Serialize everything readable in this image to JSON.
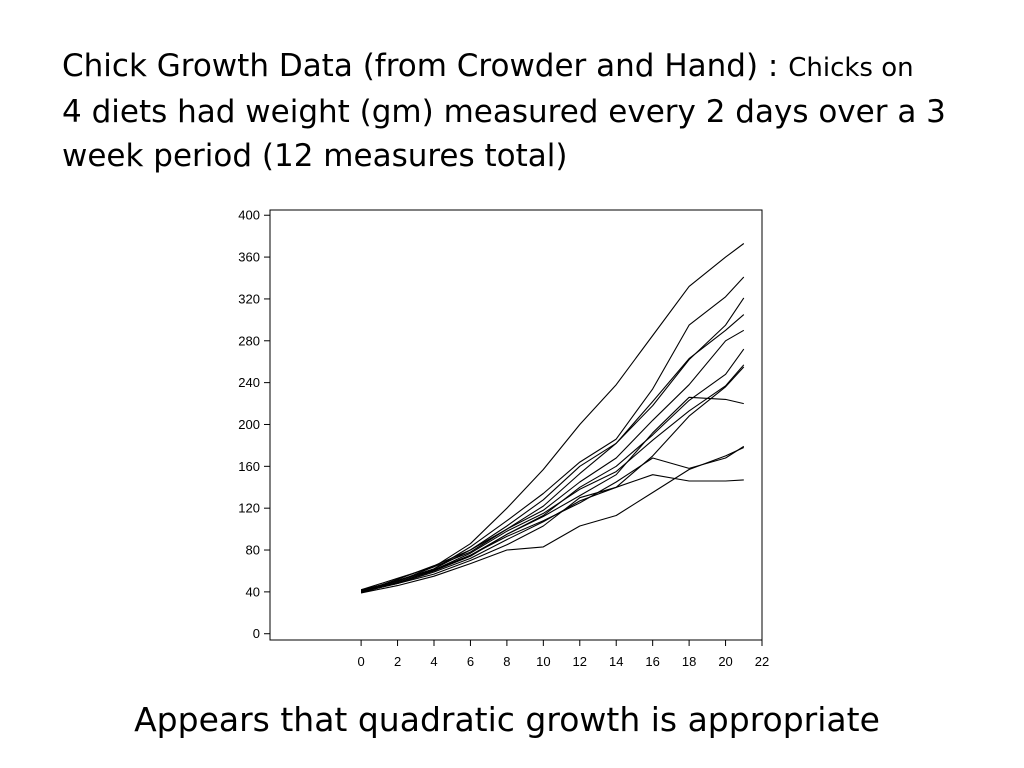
{
  "slide": {
    "title_main": "Chick Growth Data (from Crowder and Hand) : ",
    "title_small": "Chicks on",
    "title_rest": "4 diets had weight (gm) measured every 2 days over a 3 week period (12 measures total)",
    "caption": "Appears that quadratic growth is appropriate"
  },
  "chart_data": {
    "type": "line",
    "title": "",
    "xlabel": "",
    "ylabel": "",
    "xlim": [
      -5,
      22
    ],
    "ylim": [
      -6,
      405
    ],
    "xticks": [
      0,
      2,
      4,
      6,
      8,
      10,
      12,
      14,
      16,
      18,
      20,
      22
    ],
    "yticks": [
      0,
      40,
      80,
      120,
      160,
      200,
      240,
      280,
      320,
      360,
      400
    ],
    "grid": false,
    "line_color": "#000000",
    "x": [
      0,
      2,
      4,
      6,
      8,
      10,
      12,
      14,
      16,
      18,
      20,
      21
    ],
    "series": [
      {
        "values": [
          42,
          53,
          64,
          86,
          120,
          157,
          200,
          238,
          285,
          332,
          360,
          373
        ]
      },
      {
        "values": [
          41,
          51,
          62,
          83,
          108,
          134,
          164,
          186,
          234,
          295,
          322,
          341
        ]
      },
      {
        "values": [
          40,
          52,
          65,
          80,
          103,
          128,
          160,
          182,
          218,
          262,
          295,
          321
        ]
      },
      {
        "values": [
          41,
          50,
          64,
          78,
          100,
          122,
          153,
          182,
          222,
          263,
          290,
          305
        ]
      },
      {
        "values": [
          42,
          50,
          62,
          80,
          100,
          118,
          145,
          168,
          204,
          238,
          280,
          290
        ]
      },
      {
        "values": [
          40,
          49,
          60,
          75,
          95,
          113,
          140,
          160,
          190,
          223,
          248,
          272
        ]
      },
      {
        "values": [
          41,
          51,
          61,
          77,
          98,
          115,
          138,
          155,
          185,
          213,
          237,
          257
        ]
      },
      {
        "values": [
          39,
          49,
          60,
          74,
          95,
          112,
          132,
          152,
          192,
          226,
          224,
          220
        ]
      },
      {
        "values": [
          40,
          48,
          59,
          72,
          90,
          107,
          127,
          140,
          170,
          208,
          236,
          255
        ]
      },
      {
        "values": [
          41,
          49,
          61,
          75,
          93,
          108,
          125,
          145,
          168,
          158,
          168,
          179
        ]
      },
      {
        "values": [
          40,
          48,
          57,
          70,
          85,
          103,
          130,
          140,
          152,
          146,
          146,
          147
        ]
      },
      {
        "values": [
          39,
          46,
          55,
          67,
          80,
          83,
          103,
          113,
          135,
          157,
          170,
          178
        ]
      }
    ]
  }
}
